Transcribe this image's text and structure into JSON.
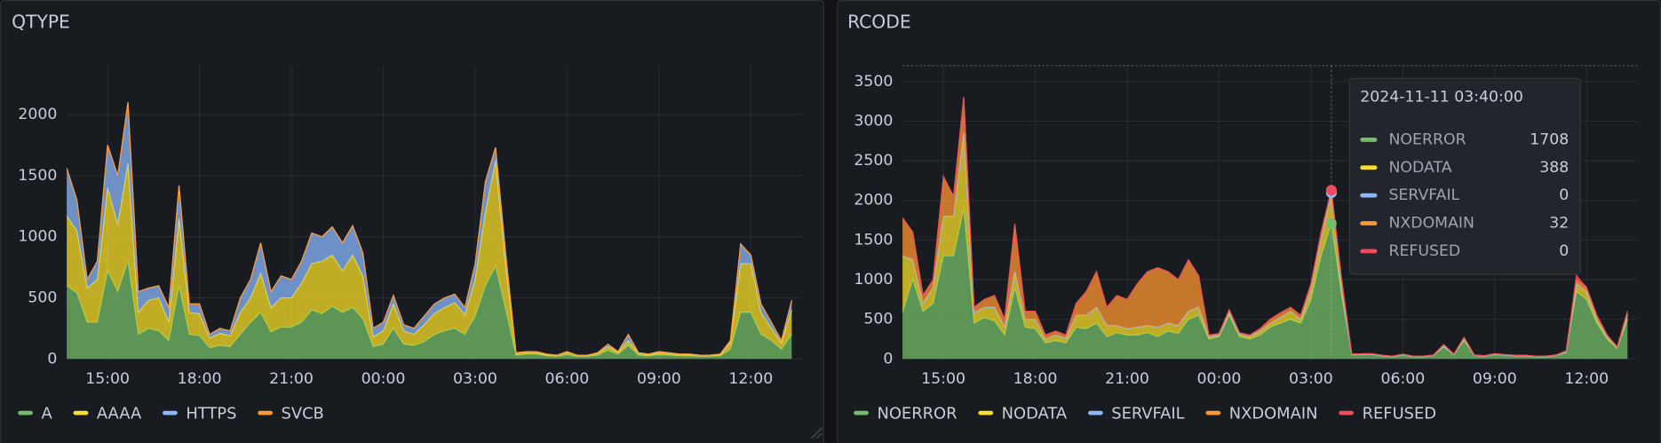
{
  "chart_data": [
    {
      "type": "area",
      "stacked": true,
      "title": "QTYPE",
      "x": [
        "13:40",
        "14:00",
        "14:20",
        "14:40",
        "15:00",
        "15:20",
        "15:40",
        "16:00",
        "16:20",
        "16:40",
        "17:00",
        "17:20",
        "17:40",
        "18:00",
        "18:20",
        "18:40",
        "19:00",
        "19:20",
        "19:40",
        "20:00",
        "20:20",
        "20:40",
        "21:00",
        "21:20",
        "21:40",
        "22:00",
        "22:20",
        "22:40",
        "23:00",
        "23:20",
        "23:40",
        "00:00",
        "00:20",
        "00:40",
        "01:00",
        "01:20",
        "01:40",
        "02:00",
        "02:20",
        "02:40",
        "03:00",
        "03:20",
        "03:40",
        "04:00",
        "04:20",
        "04:40",
        "05:00",
        "05:20",
        "05:40",
        "06:00",
        "06:20",
        "06:40",
        "07:00",
        "07:20",
        "07:40",
        "08:00",
        "08:20",
        "08:40",
        "09:00",
        "09:20",
        "09:40",
        "10:00",
        "10:20",
        "10:40",
        "11:00",
        "11:20",
        "11:40",
        "12:00",
        "12:20",
        "12:40",
        "13:00",
        "13:20"
      ],
      "xlim": [
        "13:40",
        "13:40"
      ],
      "xticks": [
        "15:00",
        "18:00",
        "21:00",
        "00:00",
        "03:00",
        "06:00",
        "09:00",
        "12:00"
      ],
      "ylim": [
        0,
        2400
      ],
      "yticks": [
        0,
        500,
        1000,
        1500,
        2000
      ],
      "grid": true,
      "series": [
        {
          "name": "A",
          "color": "#73bf69",
          "values": [
            600,
            540,
            300,
            300,
            720,
            550,
            800,
            200,
            250,
            230,
            150,
            600,
            200,
            190,
            90,
            110,
            100,
            200,
            300,
            380,
            220,
            260,
            260,
            300,
            400,
            370,
            430,
            380,
            420,
            330,
            100,
            120,
            250,
            120,
            110,
            140,
            200,
            230,
            250,
            200,
            350,
            600,
            760,
            400,
            30,
            40,
            40,
            25,
            20,
            35,
            20,
            20,
            30,
            70,
            40,
            110,
            30,
            25,
            35,
            30,
            25,
            25,
            20,
            20,
            25,
            80,
            380,
            380,
            200,
            150,
            80,
            200
          ]
        },
        {
          "name": "AAAA",
          "color": "#fade2a",
          "values": [
            570,
            510,
            280,
            350,
            680,
            550,
            800,
            180,
            230,
            270,
            150,
            550,
            180,
            180,
            80,
            100,
            90,
            180,
            200,
            320,
            200,
            240,
            240,
            320,
            380,
            430,
            420,
            340,
            430,
            350,
            80,
            110,
            200,
            110,
            90,
            140,
            170,
            190,
            210,
            160,
            300,
            600,
            860,
            350,
            15,
            15,
            15,
            10,
            10,
            20,
            10,
            10,
            15,
            30,
            15,
            40,
            15,
            10,
            15,
            15,
            10,
            10,
            10,
            10,
            10,
            50,
            400,
            400,
            180,
            100,
            50,
            200
          ]
        },
        {
          "name": "HTTPS",
          "color": "#8ab8ff",
          "values": [
            390,
            250,
            70,
            150,
            350,
            400,
            500,
            170,
            100,
            100,
            120,
            270,
            70,
            80,
            30,
            40,
            40,
            120,
            150,
            250,
            130,
            180,
            150,
            180,
            250,
            200,
            230,
            230,
            240,
            190,
            70,
            70,
            70,
            50,
            50,
            70,
            80,
            80,
            70,
            60,
            130,
            250,
            110,
            100,
            5,
            5,
            5,
            5,
            0,
            5,
            0,
            0,
            5,
            20,
            5,
            50,
            5,
            5,
            10,
            5,
            5,
            5,
            0,
            0,
            5,
            20,
            160,
            70,
            70,
            50,
            20,
            80
          ]
        },
        {
          "name": "SVCB",
          "color": "#ff9830",
          "values": [
            0,
            0,
            0,
            0,
            0,
            0,
            0,
            0,
            0,
            0,
            0,
            0,
            0,
            0,
            0,
            0,
            0,
            0,
            0,
            0,
            0,
            0,
            0,
            0,
            0,
            0,
            0,
            0,
            0,
            0,
            0,
            0,
            0,
            0,
            0,
            0,
            0,
            0,
            0,
            0,
            0,
            0,
            0,
            0,
            0,
            0,
            0,
            0,
            0,
            0,
            0,
            0,
            0,
            0,
            0,
            0,
            0,
            0,
            0,
            0,
            0,
            0,
            0,
            0,
            0,
            0,
            0,
            0,
            0,
            0,
            0,
            0
          ]
        }
      ]
    },
    {
      "type": "area",
      "stacked": true,
      "title": "RCODE",
      "x": [
        "13:40",
        "14:00",
        "14:20",
        "14:40",
        "15:00",
        "15:20",
        "15:40",
        "16:00",
        "16:20",
        "16:40",
        "17:00",
        "17:20",
        "17:40",
        "18:00",
        "18:20",
        "18:40",
        "19:00",
        "19:20",
        "19:40",
        "20:00",
        "20:20",
        "20:40",
        "21:00",
        "21:20",
        "21:40",
        "22:00",
        "22:20",
        "22:40",
        "23:00",
        "23:20",
        "23:40",
        "00:00",
        "00:20",
        "00:40",
        "01:00",
        "01:20",
        "01:40",
        "02:00",
        "02:20",
        "02:40",
        "03:00",
        "03:20",
        "03:40",
        "04:00",
        "04:20",
        "04:40",
        "05:00",
        "05:20",
        "05:40",
        "06:00",
        "06:20",
        "06:40",
        "07:00",
        "07:20",
        "07:40",
        "08:00",
        "08:20",
        "08:40",
        "09:00",
        "09:20",
        "09:40",
        "10:00",
        "10:20",
        "10:40",
        "11:00",
        "11:20",
        "11:40",
        "12:00",
        "12:20",
        "12:40",
        "13:00",
        "13:20"
      ],
      "xlim": [
        "13:40",
        "13:40"
      ],
      "xticks": [
        "15:00",
        "18:00",
        "21:00",
        "00:00",
        "03:00",
        "06:00",
        "09:00",
        "12:00"
      ],
      "ylim": [
        0,
        3700
      ],
      "yticks": [
        0,
        500,
        1000,
        1500,
        2000,
        2500,
        3000,
        3500
      ],
      "grid": true,
      "tooltip": "2024-11-11 03:40:00",
      "series": [
        {
          "name": "NOERROR",
          "color": "#73bf69",
          "values": [
            590,
            1000,
            600,
            700,
            1300,
            1300,
            1900,
            450,
            520,
            480,
            300,
            900,
            400,
            380,
            200,
            230,
            200,
            400,
            380,
            450,
            280,
            330,
            300,
            300,
            330,
            280,
            350,
            320,
            500,
            550,
            250,
            280,
            550,
            280,
            250,
            300,
            400,
            450,
            500,
            450,
            750,
            1300,
            1708,
            800,
            50,
            55,
            55,
            35,
            25,
            50,
            25,
            25,
            40,
            150,
            50,
            230,
            40,
            30,
            55,
            45,
            35,
            35,
            25,
            25,
            40,
            80,
            850,
            750,
            450,
            250,
            130,
            500
          ]
        },
        {
          "name": "NODATA",
          "color": "#fade2a",
          "values": [
            710,
            250,
            100,
            200,
            500,
            500,
            950,
            130,
            130,
            170,
            100,
            200,
            100,
            120,
            50,
            70,
            60,
            150,
            170,
            200,
            140,
            90,
            80,
            100,
            90,
            120,
            100,
            100,
            100,
            100,
            30,
            20,
            50,
            30,
            30,
            50,
            50,
            70,
            100,
            50,
            130,
            200,
            388,
            100,
            5,
            5,
            5,
            5,
            5,
            5,
            5,
            5,
            5,
            20,
            5,
            30,
            5,
            5,
            5,
            5,
            5,
            5,
            5,
            5,
            5,
            10,
            100,
            100,
            50,
            30,
            15,
            60
          ]
        },
        {
          "name": "SERVFAIL",
          "color": "#8ab8ff",
          "values": [
            0,
            0,
            0,
            0,
            0,
            0,
            0,
            0,
            0,
            0,
            0,
            0,
            0,
            0,
            0,
            0,
            0,
            0,
            0,
            0,
            0,
            0,
            0,
            0,
            0,
            0,
            0,
            0,
            0,
            0,
            0,
            0,
            0,
            0,
            0,
            0,
            0,
            0,
            0,
            0,
            0,
            0,
            0,
            0,
            0,
            0,
            0,
            0,
            0,
            0,
            0,
            0,
            0,
            0,
            0,
            0,
            0,
            0,
            0,
            0,
            0,
            0,
            0,
            0,
            0,
            0,
            0,
            0,
            0,
            0,
            0,
            0
          ]
        },
        {
          "name": "NXDOMAIN",
          "color": "#ff9830",
          "values": [
            480,
            350,
            100,
            100,
            500,
            250,
            450,
            70,
            100,
            150,
            100,
            600,
            100,
            100,
            50,
            50,
            40,
            150,
            300,
            450,
            230,
            380,
            370,
            550,
            680,
            750,
            650,
            580,
            650,
            400,
            20,
            20,
            20,
            20,
            20,
            30,
            50,
            60,
            50,
            50,
            70,
            100,
            32,
            100,
            5,
            5,
            5,
            5,
            5,
            5,
            5,
            5,
            5,
            10,
            5,
            10,
            5,
            5,
            5,
            5,
            5,
            5,
            5,
            5,
            5,
            10,
            50,
            40,
            50,
            20,
            5,
            40
          ]
        },
        {
          "name": "REFUSED",
          "color": "#f2495c",
          "values": [
            0,
            0,
            0,
            0,
            0,
            0,
            0,
            0,
            0,
            0,
            0,
            0,
            0,
            0,
            0,
            0,
            0,
            0,
            0,
            0,
            0,
            0,
            0,
            0,
            0,
            0,
            0,
            0,
            0,
            0,
            0,
            0,
            0,
            0,
            0,
            0,
            0,
            0,
            0,
            0,
            0,
            0,
            0,
            0,
            0,
            0,
            0,
            0,
            0,
            0,
            0,
            0,
            0,
            0,
            0,
            0,
            0,
            0,
            0,
            0,
            0,
            0,
            0,
            0,
            0,
            0,
            50,
            10,
            0,
            0,
            0,
            0
          ]
        }
      ]
    }
  ]
}
